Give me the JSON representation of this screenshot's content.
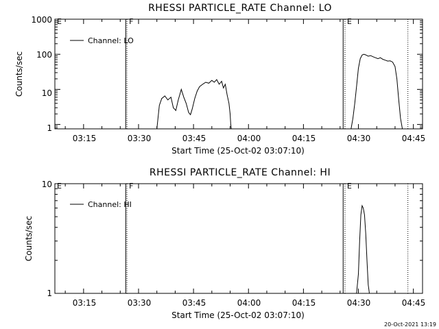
{
  "timestamp": "20-Oct-2021 13:19",
  "chart_data": [
    {
      "type": "line",
      "title": "RHESSI PARTICLE_RATE Channel: LO",
      "xlabel": "Start Time (25-Oct-02 03:07:10)",
      "ylabel": "Counts/sec",
      "xscale": "time",
      "yscale": "log",
      "xlim": [
        "03:07:10",
        "04:47:30"
      ],
      "ylim": [
        0.75,
        1000
      ],
      "xticks": [
        "03:15",
        "03:30",
        "03:45",
        "04:00",
        "04:15",
        "04:30",
        "04:45"
      ],
      "yticks": [
        "1",
        "10",
        "100",
        "1000"
      ],
      "legend": {
        "label": "Channel: LO",
        "position": "top-left"
      },
      "markers": [
        {
          "label": "E",
          "time": "03:07:10",
          "style": "solid"
        },
        {
          "label": "F",
          "time": "03:26:50",
          "style": "dotted"
        },
        {
          "label": "E",
          "time": "04:26:20",
          "style": "dotted"
        },
        {
          "label": "",
          "time": "03:26:30",
          "style": "solid"
        },
        {
          "label": "",
          "time": "04:25:50",
          "style": "solid"
        },
        {
          "label": "",
          "time": "04:43:30",
          "style": "dotted"
        }
      ],
      "series": [
        {
          "x": [
            "03:35:00",
            "03:35:40",
            "03:36:20",
            "03:37:10",
            "03:38:00",
            "03:38:50",
            "03:39:30",
            "03:40:10",
            "03:40:50",
            "03:41:40",
            "03:42:20",
            "03:43:00",
            "03:43:40",
            "03:44:10",
            "03:44:40",
            "03:45:20",
            "03:46:00",
            "03:46:40",
            "03:47:30",
            "03:48:20",
            "03:49:10",
            "03:50:00",
            "03:50:40",
            "03:51:20",
            "03:52:00",
            "03:52:40",
            "03:53:10",
            "03:53:40",
            "03:54:10",
            "03:54:40",
            "03:55:00",
            "03:55:10",
            "03:55:20"
          ],
          "y": [
            0.75,
            3.5,
            5.5,
            6.5,
            5,
            6,
            3,
            2.5,
            5,
            10,
            6,
            4,
            2.2,
            1.9,
            2.8,
            5.5,
            9,
            12,
            14,
            16,
            15,
            18,
            16,
            19,
            14,
            17,
            11,
            14,
            7,
            4,
            2,
            1,
            0.75
          ]
        },
        {
          "x": [
            "04:28:00",
            "04:28:30",
            "04:29:00",
            "04:29:30",
            "04:30:00",
            "04:30:30",
            "04:31:00",
            "04:31:30",
            "04:32:00",
            "04:32:40",
            "04:33:20",
            "04:34:00",
            "04:34:40",
            "04:35:20",
            "04:36:00",
            "04:36:40",
            "04:37:20",
            "04:38:00",
            "04:38:40",
            "04:39:20",
            "04:40:00",
            "04:40:30",
            "04:41:00",
            "04:41:30",
            "04:42:00"
          ],
          "y": [
            0.75,
            1.5,
            4,
            12,
            40,
            75,
            95,
            100,
            96,
            88,
            92,
            85,
            80,
            75,
            80,
            72,
            68,
            64,
            65,
            60,
            45,
            20,
            5,
            1.5,
            0.75
          ]
        }
      ]
    },
    {
      "type": "line",
      "title": "RHESSI PARTICLE_RATE Channel: HI",
      "xlabel": "Start Time (25-Oct-02 03:07:10)",
      "ylabel": "Counts/sec",
      "xscale": "time",
      "yscale": "log",
      "xlim": [
        "03:07:10",
        "04:47:30"
      ],
      "ylim": [
        1,
        10
      ],
      "xticks": [
        "03:15",
        "03:30",
        "03:45",
        "04:00",
        "04:15",
        "04:30",
        "04:45"
      ],
      "yticks": [
        "1",
        "10"
      ],
      "legend": {
        "label": "Channel: HI",
        "position": "top-left"
      },
      "markers": [
        {
          "label": "E",
          "time": "03:07:10",
          "style": "solid"
        },
        {
          "label": "F",
          "time": "03:26:50",
          "style": "dotted"
        },
        {
          "label": "E",
          "time": "04:26:20",
          "style": "dotted"
        },
        {
          "label": "",
          "time": "03:26:30",
          "style": "solid"
        },
        {
          "label": "",
          "time": "04:25:50",
          "style": "solid"
        },
        {
          "label": "",
          "time": "04:43:30",
          "style": "dotted"
        }
      ],
      "series": [
        {
          "x": [
            "04:29:30",
            "04:30:00",
            "04:30:20",
            "04:30:40",
            "04:31:00",
            "04:31:20",
            "04:31:40",
            "04:32:00",
            "04:32:20",
            "04:32:40",
            "04:33:00"
          ],
          "y": [
            1,
            1.5,
            3,
            5.2,
            6.3,
            6.0,
            5.2,
            3.5,
            2.0,
            1.2,
            1
          ]
        }
      ]
    }
  ]
}
